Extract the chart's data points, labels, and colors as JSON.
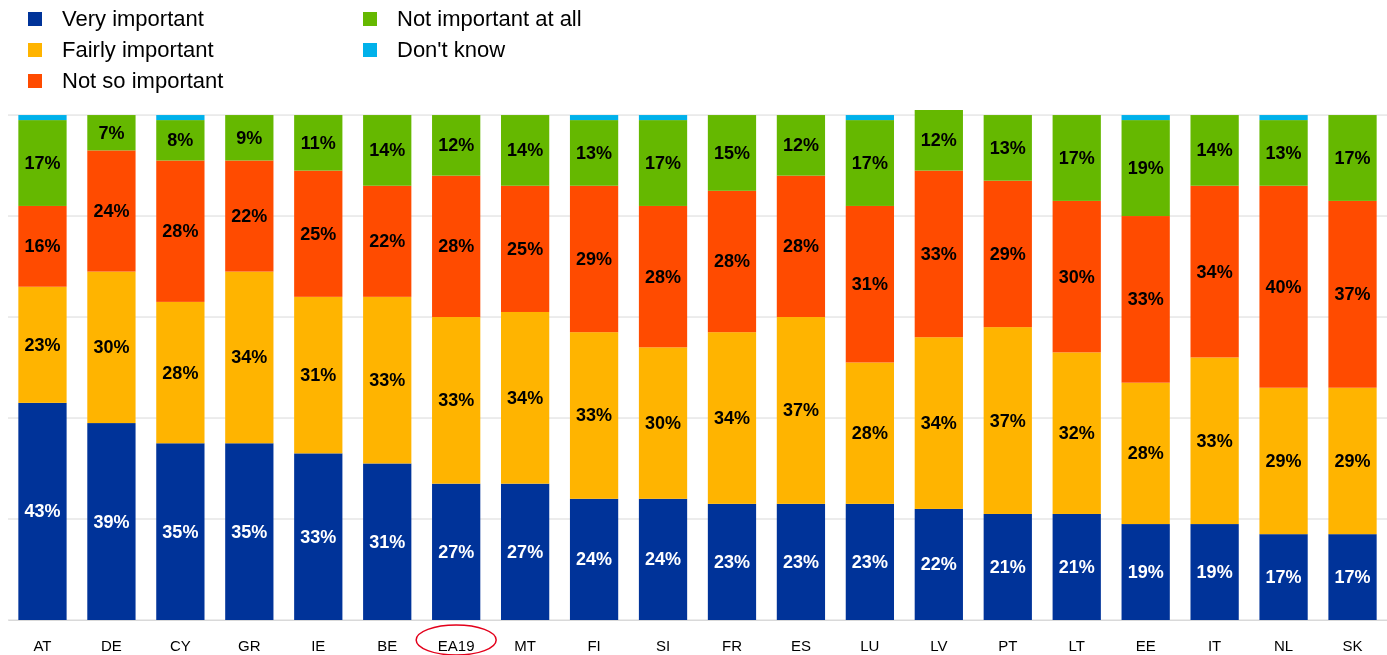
{
  "chart_data": {
    "type": "bar",
    "stacked": true,
    "categories": [
      "AT",
      "DE",
      "CY",
      "GR",
      "IE",
      "BE",
      "EA19",
      "MT",
      "FI",
      "SI",
      "FR",
      "ES",
      "LU",
      "LV",
      "PT",
      "LT",
      "EE",
      "IT",
      "NL",
      "SK"
    ],
    "ylim": [
      0,
      101
    ],
    "yticks": [
      {
        "value": 0,
        "label": null
      },
      {
        "value": 20,
        "label": null
      },
      {
        "value": 40,
        "label": null
      },
      {
        "value": 60,
        "label": null
      },
      {
        "value": 80,
        "label": null
      },
      {
        "value": 100,
        "label": null
      }
    ],
    "grid": "y",
    "tick_labels": "x",
    "legend": "top left",
    "series": [
      {
        "name": "Very important",
        "color": "#003399",
        "values": [
          43,
          39,
          35,
          35,
          33,
          31,
          27,
          27,
          24,
          24,
          23,
          23,
          23,
          22,
          21,
          21,
          19,
          19,
          17,
          17
        ],
        "value_labels": [
          "43%",
          "39%",
          "35%",
          "35%",
          "33%",
          "31%",
          "27%",
          "27%",
          "24%",
          "24%",
          "23%",
          "23%",
          "23%",
          "22%",
          "21%",
          "21%",
          "19%",
          "19%",
          "17%",
          "17%"
        ]
      },
      {
        "name": "Fairly important",
        "color": "#ffb400",
        "values": [
          23,
          30,
          28,
          34,
          31,
          33,
          33,
          34,
          33,
          30,
          34,
          37,
          28,
          34,
          37,
          32,
          28,
          33,
          29,
          29
        ],
        "value_labels": [
          "23%",
          "30%",
          "28%",
          "34%",
          "31%",
          "33%",
          "33%",
          "34%",
          "33%",
          "30%",
          "34%",
          "37%",
          "28%",
          "34%",
          "37%",
          "32%",
          "28%",
          "33%",
          "29%",
          "29%"
        ]
      },
      {
        "name": "Not so important",
        "color": "#ff4b00",
        "values": [
          16,
          24,
          28,
          22,
          25,
          22,
          28,
          25,
          29,
          28,
          28,
          28,
          31,
          33,
          29,
          30,
          33,
          34,
          40,
          37
        ],
        "value_labels": [
          "16%",
          "24%",
          "28%",
          "22%",
          "25%",
          "22%",
          "28%",
          "25%",
          "29%",
          "28%",
          "28%",
          "28%",
          "31%",
          "33%",
          "29%",
          "30%",
          "33%",
          "34%",
          "40%",
          "37%"
        ]
      },
      {
        "name": "Not important at all",
        "color": "#65b800",
        "values": [
          17,
          7,
          8,
          9,
          11,
          14,
          12,
          14,
          13,
          17,
          15,
          12,
          17,
          12,
          13,
          17,
          19,
          14,
          13,
          17
        ],
        "value_labels": [
          "17%",
          "7%",
          "8%",
          "9%",
          "11%",
          "14%",
          "12%",
          "14%",
          "13%",
          "17%",
          "15%",
          "12%",
          "17%",
          "12%",
          "13%",
          "17%",
          "19%",
          "14%",
          "13%",
          "17%"
        ]
      },
      {
        "name": "Don't know",
        "color": "#00b1ea",
        "values": [
          1,
          0,
          1,
          0,
          0,
          0,
          0,
          0,
          1,
          1,
          0,
          0,
          1,
          0,
          0,
          0,
          1,
          0,
          1,
          0
        ],
        "value_labels": [
          null,
          null,
          null,
          null,
          null,
          null,
          null,
          null,
          null,
          null,
          null,
          null,
          null,
          null,
          null,
          null,
          null,
          null,
          null,
          null
        ]
      }
    ]
  }
}
